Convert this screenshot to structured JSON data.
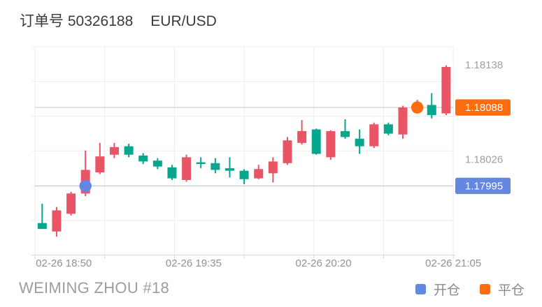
{
  "header": {
    "order_label": "订单号 50326188",
    "symbol": "EUR/USD"
  },
  "footer": {
    "trader": "WEIMING ZHOU #18"
  },
  "legend": {
    "open_label": "开仓",
    "close_label": "平仓"
  },
  "chart_data": {
    "type": "candlestick",
    "title": "订单号 50326188 EUR/USD",
    "symbol": "EUR/USD",
    "ylim": [
      1.17913,
      1.1816
    ],
    "grid": true,
    "legend_position": "bottom-right",
    "colors": {
      "up": "#e95564",
      "down": "#07a78e",
      "grid": "#ededed",
      "axis": "#d2d4d8",
      "price_line": "#cccccc",
      "x_label": "#8e929a",
      "y_label": "#9aa0a6",
      "open_accent": "#6586e1",
      "close_accent": "#fd6c0e",
      "badge_text": "#ffffff"
    },
    "x_labels": [
      {
        "text": "02-26 18:50",
        "candle_index": 1
      },
      {
        "text": "02-26 19:35",
        "candle_index": 10
      },
      {
        "text": "02-26 20:20",
        "candle_index": 19
      },
      {
        "text": "02-26 21:05",
        "candle_index": 28
      }
    ],
    "y_axis_labels": [
      {
        "text": "1.18138",
        "price": 1.18138
      },
      {
        "text": "1.18026",
        "price": 1.18026
      }
    ],
    "open_order": {
      "label": "1.17995",
      "price": 1.17995,
      "candle_index": 3,
      "color": "#6586e1"
    },
    "close_order": {
      "label": "1.18088",
      "price": 1.18088,
      "candle_index": 26,
      "color": "#fd6c0e"
    },
    "candles_format": [
      "open",
      "high",
      "low",
      "close"
    ],
    "candles": [
      [
        1.17951,
        1.17974,
        1.17944,
        1.17944
      ],
      [
        1.17941,
        1.1797,
        1.17935,
        1.17966
      ],
      [
        1.17962,
        1.17988,
        1.1796,
        1.17986
      ],
      [
        1.17986,
        1.18037,
        1.17983,
        1.18014
      ],
      [
        1.18011,
        1.18046,
        1.18009,
        1.1803
      ],
      [
        1.18032,
        1.18046,
        1.18028,
        1.18041
      ],
      [
        1.18042,
        1.18045,
        1.18029,
        1.18032
      ],
      [
        1.18031,
        1.18034,
        1.18021,
        1.18024
      ],
      [
        1.18025,
        1.18028,
        1.18015,
        1.18018
      ],
      [
        1.18017,
        1.1802,
        1.18002,
        1.18004
      ],
      [
        1.18002,
        1.18032,
        1.18,
        1.18029
      ],
      [
        1.18023,
        1.18029,
        1.18016,
        1.18021
      ],
      [
        1.18022,
        1.18028,
        1.1801,
        1.18014
      ],
      [
        1.18016,
        1.18029,
        1.18005,
        1.18013
      ],
      [
        1.18013,
        1.18015,
        1.17997,
        1.18003
      ],
      [
        1.18004,
        1.1802,
        1.18003,
        1.18015
      ],
      [
        1.1801,
        1.18029,
        1.17999,
        1.18024
      ],
      [
        1.18022,
        1.18053,
        1.1802,
        1.18049
      ],
      [
        1.18046,
        1.18073,
        1.18044,
        1.1806
      ],
      [
        1.18062,
        1.18063,
        1.18032,
        1.18033
      ],
      [
        1.18029,
        1.18061,
        1.18026,
        1.1806
      ],
      [
        1.1806,
        1.18074,
        1.18051,
        1.18053
      ],
      [
        1.18051,
        1.18062,
        1.18033,
        1.18042
      ],
      [
        1.18042,
        1.1807,
        1.1804,
        1.18068
      ],
      [
        1.18068,
        1.1807,
        1.18055,
        1.18057
      ],
      [
        1.18056,
        1.1809,
        1.18051,
        1.18088
      ],
      [
        1.18085,
        1.18097,
        1.18085,
        1.18091
      ],
      [
        1.18091,
        1.18105,
        1.18075,
        1.18079
      ],
      [
        1.18081,
        1.18138,
        1.18079,
        1.18136
      ]
    ]
  }
}
